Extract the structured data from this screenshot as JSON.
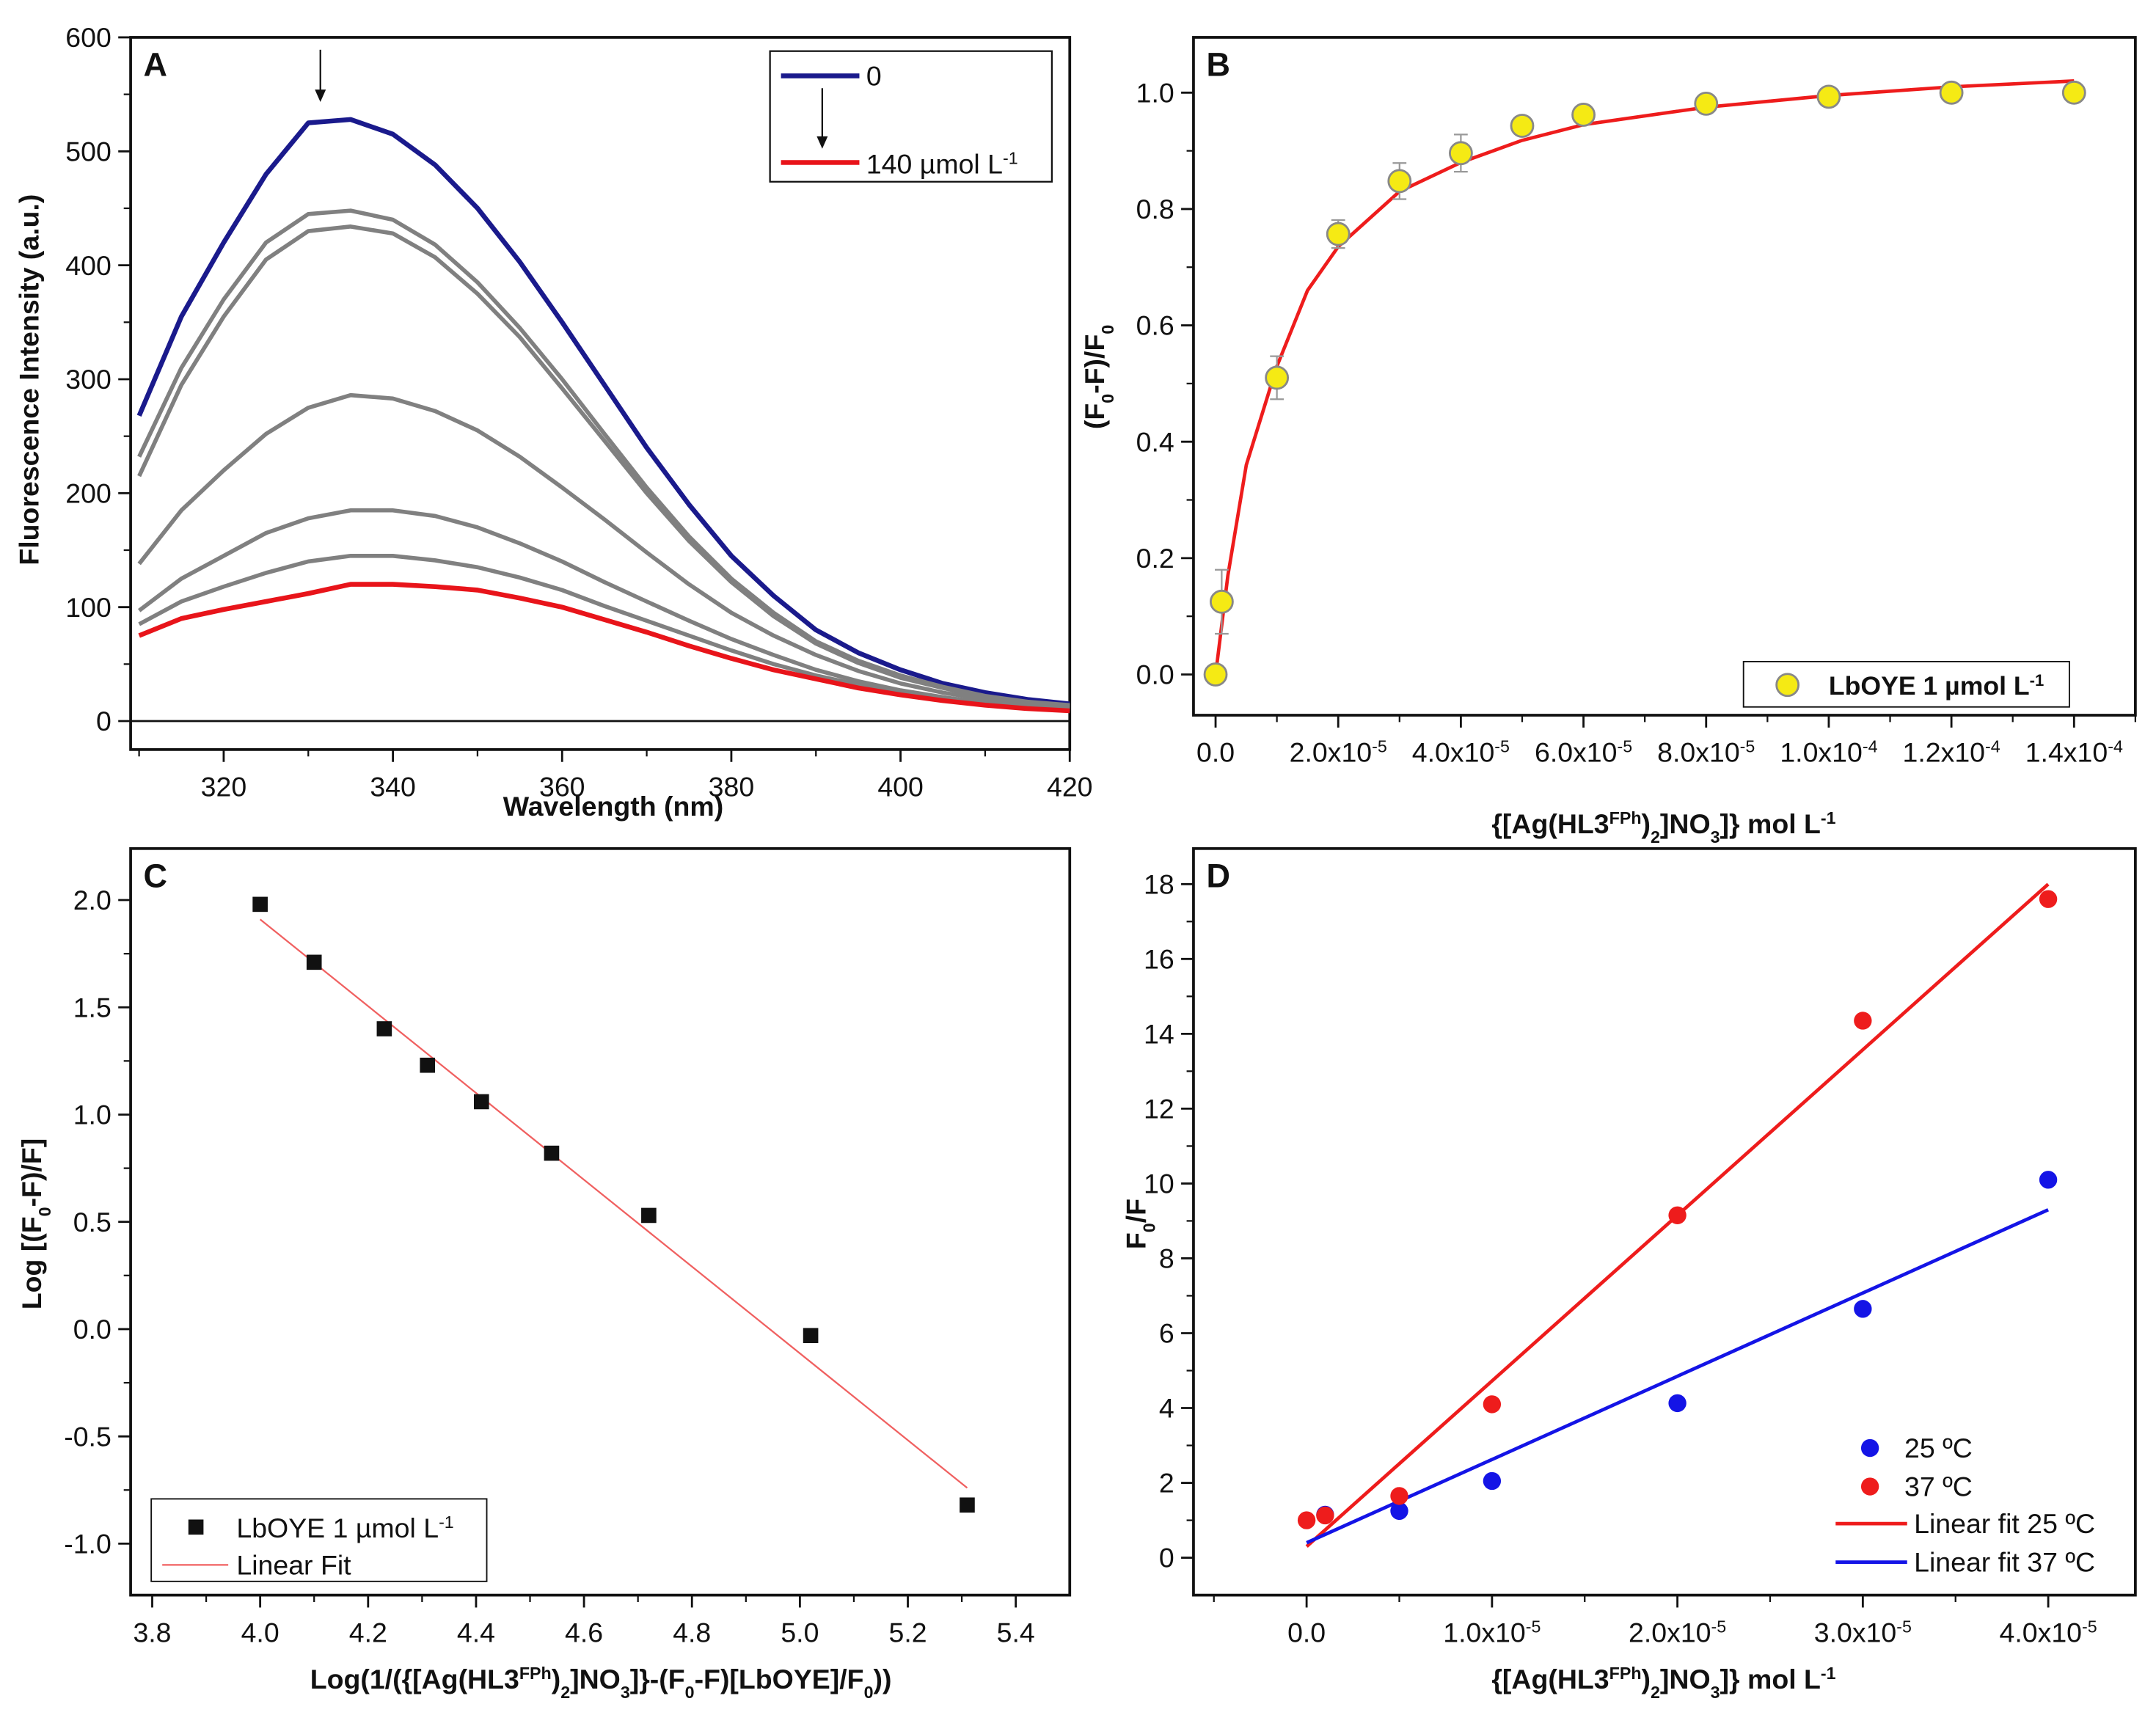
{
  "chart_data": [
    {
      "panel": "A",
      "type": "line",
      "xlabel": "Wavelength (nm)",
      "ylabel": "Fluorescence Intensity (a.u.)",
      "xlim": [
        309,
        420
      ],
      "ylim": [
        -25,
        600
      ],
      "xticks": {
        "values": [
          320,
          340,
          360,
          380,
          400,
          420
        ],
        "labels": [
          "320",
          "340",
          "360",
          "380",
          "400",
          "420"
        ]
      },
      "xminor": [
        310,
        330,
        350,
        370,
        390,
        410
      ],
      "yticks": {
        "values": [
          0,
          100,
          200,
          300,
          400,
          500,
          600
        ],
        "labels": [
          "0",
          "100",
          "200",
          "300",
          "400",
          "500",
          "600"
        ]
      },
      "yminor": [
        50,
        150,
        250,
        350,
        450,
        550
      ],
      "zero_line": true,
      "series": [
        {
          "name": "0",
          "color": "#1a1a8c",
          "width": 3.5,
          "x": [
            310,
            315,
            320,
            325,
            330,
            335,
            340,
            345,
            350,
            355,
            360,
            365,
            370,
            375,
            380,
            385,
            390,
            395,
            400,
            405,
            410,
            415,
            420
          ],
          "y": [
            268,
            355,
            420,
            480,
            525,
            528,
            515,
            488,
            450,
            403,
            350,
            295,
            240,
            190,
            145,
            110,
            80,
            60,
            45,
            33,
            25,
            19,
            15
          ]
        },
        {
          "name": "gray1",
          "color": "#808080",
          "width": 3,
          "x": [
            310,
            315,
            320,
            325,
            330,
            335,
            340,
            345,
            350,
            355,
            360,
            365,
            370,
            375,
            380,
            385,
            390,
            395,
            400,
            405,
            410,
            415,
            420
          ],
          "y": [
            232,
            310,
            370,
            420,
            445,
            448,
            440,
            418,
            385,
            345,
            300,
            252,
            205,
            162,
            125,
            95,
            70,
            53,
            40,
            30,
            22,
            17,
            14
          ]
        },
        {
          "name": "gray2",
          "color": "#808080",
          "width": 3,
          "x": [
            310,
            315,
            320,
            325,
            330,
            335,
            340,
            345,
            350,
            355,
            360,
            365,
            370,
            375,
            380,
            385,
            390,
            395,
            400,
            405,
            410,
            415,
            420
          ],
          "y": [
            215,
            295,
            355,
            405,
            430,
            434,
            428,
            407,
            375,
            337,
            292,
            246,
            200,
            158,
            122,
            92,
            68,
            51,
            38,
            29,
            21,
            16,
            13
          ]
        },
        {
          "name": "gray3",
          "color": "#808080",
          "width": 3,
          "x": [
            310,
            315,
            320,
            325,
            330,
            335,
            340,
            345,
            350,
            355,
            360,
            365,
            370,
            375,
            380,
            385,
            390,
            395,
            400,
            405,
            410,
            415,
            420
          ],
          "y": [
            138,
            185,
            220,
            252,
            275,
            286,
            283,
            272,
            255,
            232,
            205,
            177,
            148,
            120,
            95,
            75,
            58,
            44,
            33,
            25,
            19,
            15,
            12
          ]
        },
        {
          "name": "gray4",
          "color": "#808080",
          "width": 3,
          "x": [
            310,
            315,
            320,
            325,
            330,
            335,
            340,
            345,
            350,
            355,
            360,
            365,
            370,
            375,
            380,
            385,
            390,
            395,
            400,
            405,
            410,
            415,
            420
          ],
          "y": [
            97,
            125,
            145,
            165,
            178,
            185,
            185,
            180,
            170,
            156,
            140,
            122,
            105,
            88,
            72,
            58,
            45,
            35,
            27,
            21,
            16,
            13,
            11
          ]
        },
        {
          "name": "gray5",
          "color": "#808080",
          "width": 3,
          "x": [
            310,
            315,
            320,
            325,
            330,
            335,
            340,
            345,
            350,
            355,
            360,
            365,
            370,
            375,
            380,
            385,
            390,
            395,
            400,
            405,
            410,
            415,
            420
          ],
          "y": [
            85,
            105,
            118,
            130,
            140,
            145,
            145,
            141,
            135,
            126,
            115,
            101,
            88,
            75,
            62,
            50,
            40,
            32,
            25,
            19,
            15,
            12,
            10
          ]
        },
        {
          "name": "140 µmol L^{-1}",
          "color": "#e8141a",
          "width": 3.5,
          "x": [
            310,
            315,
            320,
            325,
            330,
            335,
            340,
            345,
            350,
            355,
            360,
            365,
            370,
            375,
            380,
            385,
            390,
            395,
            400,
            405,
            410,
            415,
            420
          ],
          "y": [
            75,
            90,
            98,
            105,
            112,
            120,
            120,
            118,
            115,
            108,
            100,
            89,
            78,
            66,
            55,
            45,
            37,
            29,
            23,
            18,
            14,
            11,
            9
          ]
        }
      ],
      "legend": {
        "entries": [
          {
            "label": "0",
            "color": "#1a1a8c"
          },
          {
            "label": "140 µmol L^{-1}",
            "color": "#e8141a"
          }
        ]
      }
    },
    {
      "panel": "B",
      "type": "scatter",
      "xlabel": "{[Ag(HL3^{FPh})_{2}]NO_{3}]} mol L^{-1}",
      "ylabel": "(F_{0}-F)/F_{0}",
      "xlim": [
        -3.6e-06,
        0.00015
      ],
      "ylim": [
        -0.07,
        1.095
      ],
      "xticks": {
        "values": [
          0,
          2e-05,
          4e-05,
          6e-05,
          8e-05,
          0.0001,
          0.00012,
          0.00014
        ],
        "labels": [
          "0.0",
          "2.0x10^{-5}",
          "4.0x10^{-5}",
          "6.0x10^{-5}",
          "8.0x10^{-5}",
          "1.0x10^{-4}",
          "1.2x10^{-4}",
          "1.4x10^{-4}"
        ]
      },
      "xminor": [
        1e-05,
        3e-05,
        5e-05,
        7e-05,
        9e-05,
        0.00011,
        0.00013,
        0.00015
      ],
      "yticks": {
        "values": [
          0,
          0.2,
          0.4,
          0.6,
          0.8,
          1.0
        ],
        "labels": [
          "0.0",
          "0.2",
          "0.4",
          "0.6",
          "0.8",
          "1.0"
        ]
      },
      "yminor": [
        0.1,
        0.3,
        0.5,
        0.7,
        0.9
      ],
      "series": [
        {
          "name": "LbOYE 1 µmol L^{-1}",
          "marker": "circle",
          "color": "#f5ea14",
          "edge": "#888888",
          "x": [
            0,
            1e-06,
            1e-05,
            2e-05,
            3e-05,
            4e-05,
            5e-05,
            6e-05,
            8e-05,
            0.0001,
            0.00012,
            0.00014
          ],
          "y": [
            0,
            0.125,
            0.51,
            0.757,
            0.848,
            0.896,
            0.943,
            0.962,
            0.981,
            0.993,
            1.0,
            1.0
          ],
          "err": [
            0,
            0.055,
            0.037,
            0.024,
            0.031,
            0.032,
            0.01,
            0.01,
            0.01,
            0.01,
            0.01,
            0.01
          ]
        },
        {
          "name": "fit",
          "type": "line",
          "color": "#ee1c1c",
          "width": 2.5,
          "x": [
            0,
            2e-06,
            5e-06,
            1e-05,
            1.5e-05,
            2e-05,
            3e-05,
            4e-05,
            5e-05,
            6e-05,
            8e-05,
            0.0001,
            0.00012,
            0.00014
          ],
          "y": [
            0,
            0.17,
            0.36,
            0.53,
            0.66,
            0.735,
            0.83,
            0.88,
            0.918,
            0.945,
            0.975,
            0.995,
            1.01,
            1.02
          ]
        }
      ],
      "legend": {
        "entries": [
          {
            "label": "LbOYE 1 µmol L^{-1}",
            "marker": "circle",
            "color": "#f5ea14"
          }
        ]
      }
    },
    {
      "panel": "C",
      "type": "scatter",
      "xlabel": "Log(1/({[Ag(HL3^{FPh})_{2}]NO_{3}]}-(F_{0}-F)[LbOYE]/F_{0}))",
      "ylabel": "Log [(F_{0}-F)/F]",
      "xlim": [
        3.76,
        5.5
      ],
      "ylim": [
        -1.24,
        2.24
      ],
      "xticks": {
        "values": [
          3.8,
          4.0,
          4.2,
          4.4,
          4.6,
          4.8,
          5.0,
          5.2,
          5.4
        ],
        "labels": [
          "3.8",
          "4.0",
          "4.2",
          "4.4",
          "4.6",
          "4.8",
          "5.0",
          "5.2",
          "5.4"
        ]
      },
      "xminor": [
        3.9,
        4.1,
        4.3,
        4.5,
        4.7,
        4.9,
        5.1,
        5.3
      ],
      "yticks": {
        "values": [
          -1.0,
          -0.5,
          0.0,
          0.5,
          1.0,
          1.5,
          2.0
        ],
        "labels": [
          "-1.0",
          "-0.5",
          "0.0",
          "0.5",
          "1.0",
          "1.5",
          "2.0"
        ]
      },
      "yminor": [
        -0.75,
        -0.25,
        0.25,
        0.75,
        1.25,
        1.75
      ],
      "series": [
        {
          "name": "LbOYE 1 µmol L^{-1}",
          "marker": "square",
          "color": "#111111",
          "x": [
            4.0,
            4.1,
            4.23,
            4.31,
            4.41,
            4.54,
            4.72,
            5.02,
            5.31
          ],
          "y": [
            1.98,
            1.71,
            1.4,
            1.23,
            1.06,
            0.82,
            0.53,
            -0.03,
            -0.82
          ]
        },
        {
          "name": "Linear Fit",
          "type": "line",
          "color": "#f06060",
          "width": 1.2,
          "x": [
            4.0,
            5.31
          ],
          "y": [
            1.91,
            -0.74
          ]
        }
      ],
      "legend": {
        "entries": [
          {
            "label": "LbOYE 1 µmol L^{-1}",
            "marker": "square",
            "color": "#111111"
          },
          {
            "label": "Linear Fit",
            "line": true,
            "color": "#f06060"
          }
        ]
      }
    },
    {
      "panel": "D",
      "type": "scatter",
      "xlabel": "{[Ag(HL3^{FPh})_{2}]NO_{3}]} mol L^{-1}",
      "ylabel": "F_{0}/F",
      "xlim": [
        -6.1e-06,
        4.47e-05
      ],
      "ylim": [
        -1,
        18.95
      ],
      "xticks": {
        "values": [
          0,
          1e-05,
          2e-05,
          3e-05,
          4e-05
        ],
        "labels": [
          "0.0",
          "1.0x10^{-5}",
          "2.0x10^{-5}",
          "3.0x10^{-5}",
          "4.0x10^{-5}"
        ]
      },
      "xminor": [
        -5e-06,
        5e-06,
        1.5e-05,
        2.5e-05,
        3.5e-05
      ],
      "yticks": {
        "values": [
          0,
          2,
          4,
          6,
          8,
          10,
          12,
          14,
          16,
          18
        ],
        "labels": [
          "0",
          "2",
          "4",
          "6",
          "8",
          "10",
          "12",
          "14",
          "16",
          "18"
        ]
      },
      "yminor": [
        1,
        3,
        5,
        7,
        9,
        11,
        13,
        15,
        17
      ],
      "series": [
        {
          "name": "25 ºC",
          "marker": "dot",
          "color": "#1414e6",
          "x": [
            1e-06,
            5e-06,
            1e-05,
            2e-05,
            3e-05,
            4e-05
          ],
          "y": [
            1.15,
            1.25,
            2.05,
            4.13,
            6.65,
            10.1
          ]
        },
        {
          "name": "37 ºC",
          "marker": "dot",
          "color": "#ee1c1c",
          "x": [
            0,
            1e-06,
            5e-06,
            1e-05,
            2e-05,
            3e-05,
            4e-05
          ],
          "y": [
            1.0,
            1.13,
            1.65,
            4.1,
            9.15,
            14.35,
            17.6
          ]
        },
        {
          "name": "Linear fit 25 ºC",
          "type": "line",
          "color": "#ee1c1c",
          "width": 2.5,
          "x": [
            0,
            4e-05
          ],
          "y": [
            0.3,
            18.0
          ]
        },
        {
          "name": "Linear fit 37 ºC",
          "type": "line",
          "color": "#1414e6",
          "width": 2.5,
          "x": [
            0,
            4e-05
          ],
          "y": [
            0.4,
            9.3
          ]
        }
      ],
      "legend": {
        "entries": [
          {
            "label": "25 ºC",
            "marker": "dot",
            "color": "#1414e6"
          },
          {
            "label": "37 ºC",
            "marker": "dot",
            "color": "#ee1c1c"
          },
          {
            "label": "Linear fit 25 ºC",
            "line": true,
            "color": "#ee1c1c"
          },
          {
            "label": "Linear fit 37 ºC",
            "line": true,
            "color": "#1414e6"
          }
        ]
      }
    }
  ]
}
